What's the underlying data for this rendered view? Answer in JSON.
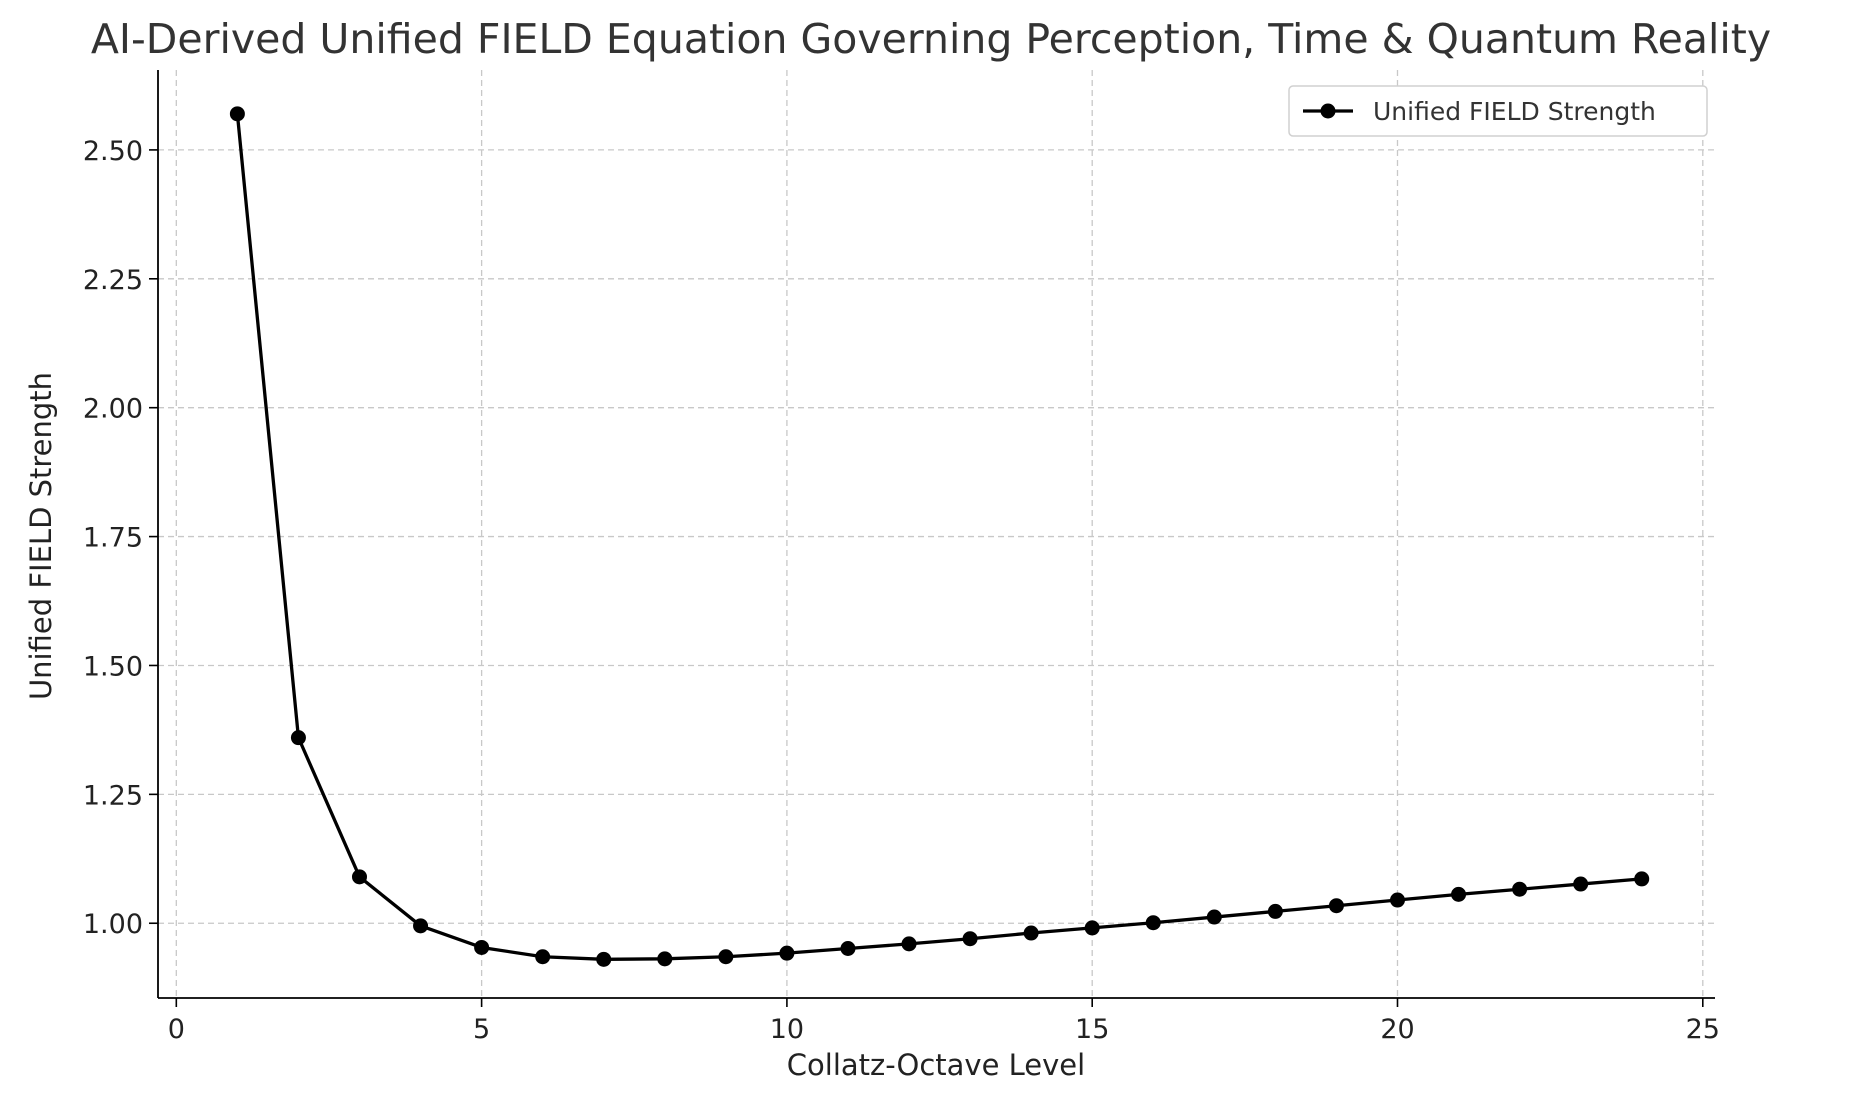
{
  "chart_data": {
    "type": "line",
    "title": "AI-Derived Unified FIELD Equation Governing Perception, Time & Quantum Reality",
    "xlabel": "Collatz-Octave Level",
    "ylabel": "Unified FIELD Strength",
    "xlim": [
      -0.3,
      25.2
    ],
    "ylim": [
      0.855,
      2.655
    ],
    "x_ticks": [
      0,
      5,
      10,
      15,
      20,
      25
    ],
    "x_tick_labels": [
      "0",
      "5",
      "10",
      "15",
      "20",
      "25"
    ],
    "y_ticks": [
      1.0,
      1.25,
      1.5,
      1.75,
      2.0,
      2.25,
      2.5
    ],
    "y_tick_labels": [
      "1.00",
      "1.25",
      "1.50",
      "1.75",
      "2.00",
      "2.25",
      "2.50"
    ],
    "grid": true,
    "legend_position": "top-right",
    "series": [
      {
        "name": "Unified FIELD Strength",
        "color": "#000000",
        "marker": "circle",
        "x": [
          1,
          2,
          3,
          4,
          5,
          6,
          7,
          8,
          9,
          10,
          11,
          12,
          13,
          14,
          15,
          16,
          17,
          18,
          19,
          20,
          21,
          22,
          23,
          24
        ],
        "y": [
          2.57,
          1.36,
          1.09,
          0.995,
          0.953,
          0.935,
          0.93,
          0.931,
          0.935,
          0.942,
          0.951,
          0.96,
          0.97,
          0.981,
          0.991,
          1.001,
          1.012,
          1.023,
          1.034,
          1.045,
          1.056,
          1.066,
          1.076,
          1.086
        ]
      }
    ]
  }
}
